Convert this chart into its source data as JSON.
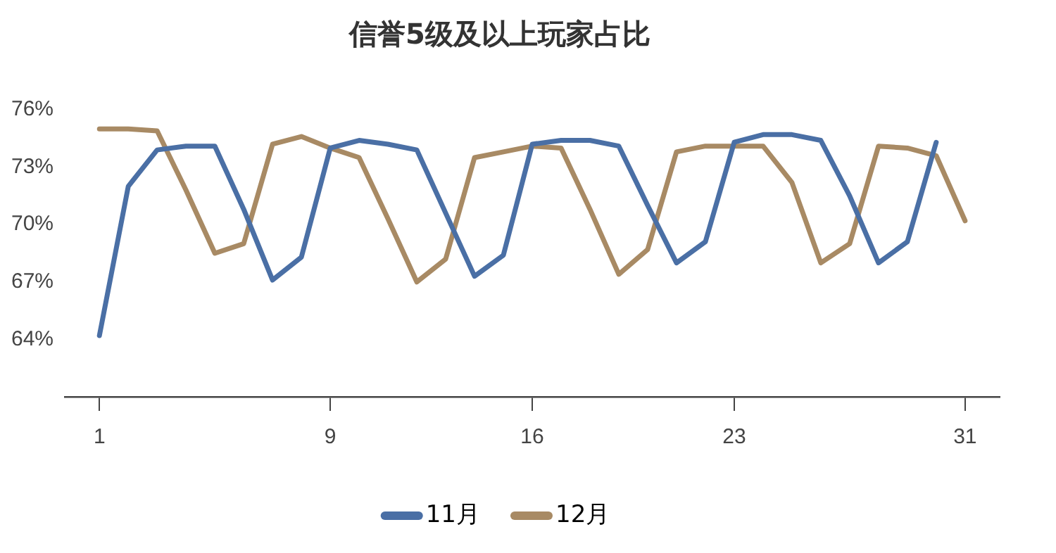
{
  "chart_data": {
    "type": "line",
    "title": "信誉5级及以上玩家占比",
    "x": [
      1,
      2,
      3,
      4,
      5,
      6,
      7,
      8,
      9,
      10,
      11,
      12,
      13,
      14,
      15,
      16,
      17,
      18,
      19,
      20,
      21,
      22,
      23,
      24,
      25,
      26,
      27,
      28,
      29,
      30,
      31
    ],
    "xlim": [
      -0.2,
      32.2
    ],
    "xticks": [
      1,
      9,
      16,
      23,
      31
    ],
    "ylim": [
      61,
      76
    ],
    "yticks": [
      {
        "value": 64,
        "label": "64%"
      },
      {
        "value": 67,
        "label": "67%"
      },
      {
        "value": 70,
        "label": "70%"
      },
      {
        "value": 73,
        "label": "73%"
      },
      {
        "value": 76,
        "label": "76%"
      }
    ],
    "legend": "bottom",
    "marker": "none",
    "line_style": "solid",
    "series": [
      {
        "name": "11月",
        "color": "#4a6fa5",
        "values": [
          64.2,
          72.0,
          73.9,
          74.1,
          74.1,
          70.8,
          67.1,
          68.3,
          74.0,
          74.4,
          74.2,
          73.9,
          70.6,
          67.3,
          68.4,
          74.2,
          74.4,
          74.4,
          74.1,
          71.0,
          68.0,
          69.1,
          74.3,
          74.7,
          74.7,
          74.4,
          71.5,
          68.0,
          69.1,
          74.3,
          null
        ]
      },
      {
        "name": "12月",
        "color": "#a88a64",
        "values": [
          75.0,
          75.0,
          74.9,
          71.8,
          68.5,
          69.0,
          74.2,
          74.6,
          74.0,
          73.5,
          70.3,
          67.0,
          68.2,
          73.5,
          73.8,
          74.1,
          74.0,
          70.8,
          67.4,
          68.7,
          73.8,
          74.1,
          74.1,
          74.1,
          72.2,
          68.0,
          69.0,
          74.1,
          74.0,
          73.6,
          70.2
        ]
      }
    ]
  }
}
